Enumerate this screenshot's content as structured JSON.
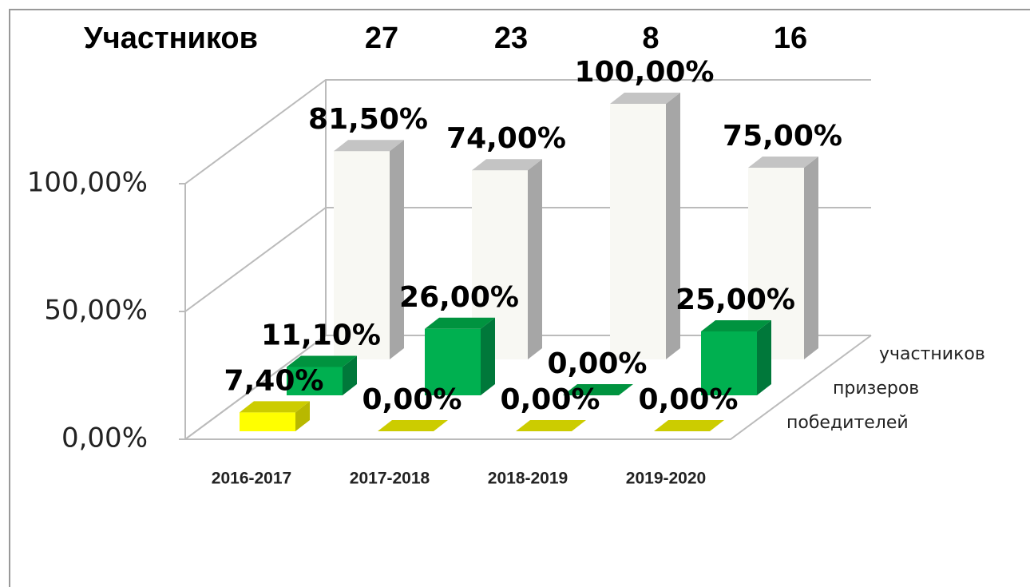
{
  "chart_data": {
    "type": "bar3d",
    "header": {
      "label": "Участников",
      "values": [
        27,
        23,
        8,
        16
      ]
    },
    "categories": [
      "2016-2017",
      "2017-2018",
      "2018-2019",
      "2019-2020"
    ],
    "series": [
      {
        "name": "победителей",
        "color": "#ffff00",
        "values": [
          7.4,
          0,
          0,
          0
        ],
        "value_labels": [
          "7,40%",
          "0,00%",
          "0,00%",
          "0,00%"
        ]
      },
      {
        "name": "призеров",
        "color": "#00b050",
        "values": [
          11.1,
          26,
          0,
          25
        ],
        "value_labels": [
          "11,10%",
          "26,00%",
          "0,00%",
          "25,00%"
        ]
      },
      {
        "name": "участников",
        "color": "#f8f8f3",
        "values": [
          81.5,
          74,
          100,
          75
        ],
        "value_labels": [
          "81,50%",
          "74,00%",
          "100,00%",
          "75,00%"
        ]
      }
    ],
    "ylim": [
      0,
      100
    ],
    "yticks": [
      {
        "value": 0,
        "label": "0,00%"
      },
      {
        "value": 50,
        "label": "50,00%"
      },
      {
        "value": 100,
        "label": "100,00%"
      }
    ],
    "grid": true
  }
}
